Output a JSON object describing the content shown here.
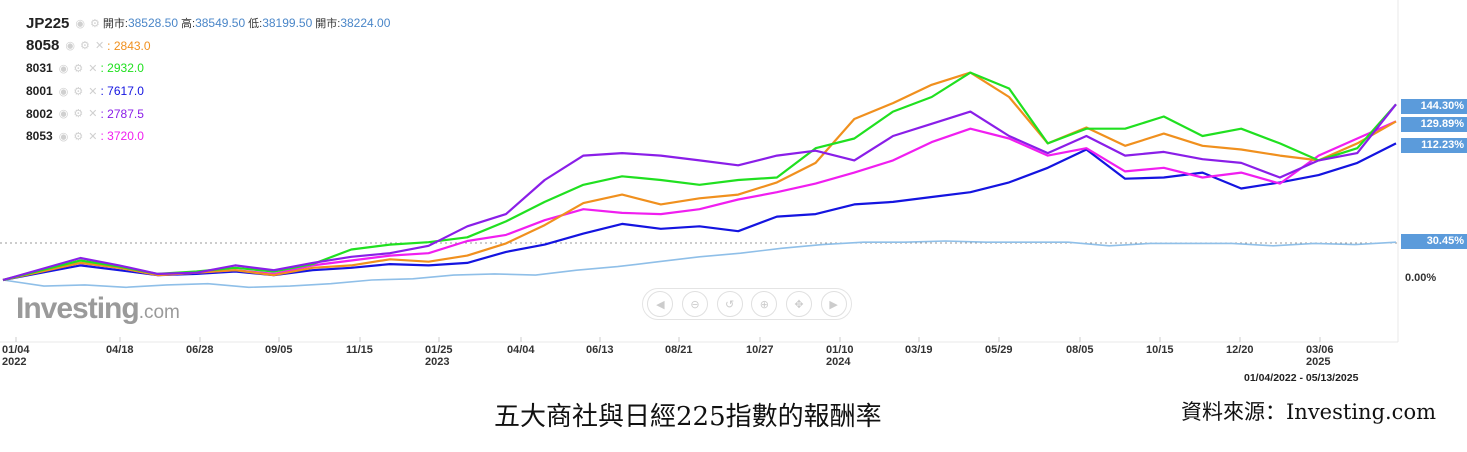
{
  "legend": {
    "main": {
      "symbol": "JP225",
      "open_label": "開市:",
      "open": "38528.50",
      "high_label": "高:",
      "high": "38549.50",
      "low_label": "低:",
      "low": "38199.50",
      "close_label": "開市:",
      "close": "38224.00"
    },
    "items": [
      {
        "symbol": "8058",
        "value": "2843.0",
        "color": "#f0901e"
      },
      {
        "symbol": "8031",
        "value": "2932.0",
        "color": "#20e020"
      },
      {
        "symbol": "8001",
        "value": "7617.0",
        "color": "#1414e0"
      },
      {
        "symbol": "8002",
        "value": "2787.5",
        "color": "#8a1ee8"
      },
      {
        "symbol": "8053",
        "value": "3720.0",
        "color": "#f01ef0"
      }
    ]
  },
  "brand": {
    "name": "Investing",
    "suffix": ".com"
  },
  "date_range": "01/04/2022 - 05/13/2025",
  "caption": "五大商社與日經225指數的報酬率",
  "source": "資料來源：Investing.com",
  "right_tags": [
    {
      "label": "144.30%",
      "value": 144.3
    },
    {
      "label": "129.89%",
      "value": 129.89
    },
    {
      "label": "112.23%",
      "value": 112.23
    },
    {
      "label": "30.45%",
      "value": 30.45
    }
  ],
  "zero_label": "0.00%",
  "nav_icons": [
    "arrow-left-icon",
    "zoom-out-icon",
    "reset-icon",
    "zoom-in-icon",
    "move-icon",
    "arrow-right-icon"
  ],
  "chart_data": {
    "type": "line",
    "x_ticks": [
      {
        "label": "01/04",
        "year": "2022"
      },
      {
        "label": "04/18"
      },
      {
        "label": "06/28"
      },
      {
        "label": "09/05"
      },
      {
        "label": "11/15"
      },
      {
        "label": "01/25",
        "year": "2023"
      },
      {
        "label": "04/04"
      },
      {
        "label": "06/13"
      },
      {
        "label": "08/21"
      },
      {
        "label": "10/27"
      },
      {
        "label": "01/10",
        "year": "2024"
      },
      {
        "label": "03/19"
      },
      {
        "label": "05/29"
      },
      {
        "label": "08/05"
      },
      {
        "label": "10/15"
      },
      {
        "label": "12/20"
      },
      {
        "label": "03/06",
        "year": "2025"
      }
    ],
    "y_unit": "%",
    "reference_line": 30.45,
    "ylim": [
      -20,
      180
    ],
    "series": [
      {
        "name": "JP225",
        "color": "#8fbfe8",
        "values": [
          0,
          -5,
          -4,
          -6,
          -4,
          -3,
          -6,
          -5,
          -3,
          0,
          1,
          4,
          5,
          4,
          8,
          11,
          15,
          19,
          22,
          26,
          29,
          31,
          31,
          32,
          31,
          31,
          31,
          28,
          30,
          30,
          30,
          28,
          30,
          29,
          31
        ]
      },
      {
        "name": "8001",
        "color": "#1414e0",
        "values": [
          0,
          6,
          12,
          8,
          4,
          5,
          7,
          4,
          8,
          10,
          13,
          12,
          14,
          23,
          29,
          38,
          46,
          42,
          44,
          40,
          52,
          54,
          62,
          64,
          68,
          72,
          80,
          92,
          107,
          83,
          84,
          88,
          75,
          80,
          86,
          96,
          112
        ]
      },
      {
        "name": "8053",
        "color": "#f01ef0",
        "values": [
          0,
          8,
          14,
          10,
          4,
          6,
          8,
          5,
          12,
          16,
          20,
          22,
          32,
          37,
          49,
          58,
          55,
          54,
          58,
          66,
          72,
          79,
          88,
          98,
          113,
          124,
          116,
          102,
          108,
          89,
          92,
          84,
          88,
          79,
          102,
          116,
          130
        ]
      },
      {
        "name": "8058",
        "color": "#f0901e",
        "values": [
          0,
          7,
          14,
          10,
          4,
          6,
          8,
          4,
          10,
          12,
          17,
          15,
          20,
          30,
          45,
          63,
          70,
          62,
          67,
          70,
          80,
          96,
          132,
          145,
          160,
          170,
          150,
          112,
          125,
          110,
          120,
          110,
          107,
          102,
          98,
          112,
          130
        ]
      },
      {
        "name": "8031",
        "color": "#20e020",
        "values": [
          0,
          8,
          16,
          11,
          5,
          7,
          10,
          7,
          13,
          25,
          29,
          31,
          35,
          48,
          64,
          78,
          85,
          82,
          78,
          82,
          84,
          108,
          116,
          138,
          150,
          170,
          157,
          112,
          124,
          124,
          134,
          118,
          124,
          112,
          98,
          108,
          144
        ]
      },
      {
        "name": "8002",
        "color": "#8a1ee8",
        "values": [
          0,
          9,
          18,
          12,
          5,
          6,
          12,
          8,
          14,
          19,
          22,
          28,
          44,
          54,
          82,
          102,
          104,
          102,
          98,
          94,
          102,
          106,
          98,
          118,
          128,
          138,
          118,
          104,
          118,
          102,
          105,
          99,
          96,
          84,
          98,
          104,
          144
        ]
      }
    ]
  }
}
